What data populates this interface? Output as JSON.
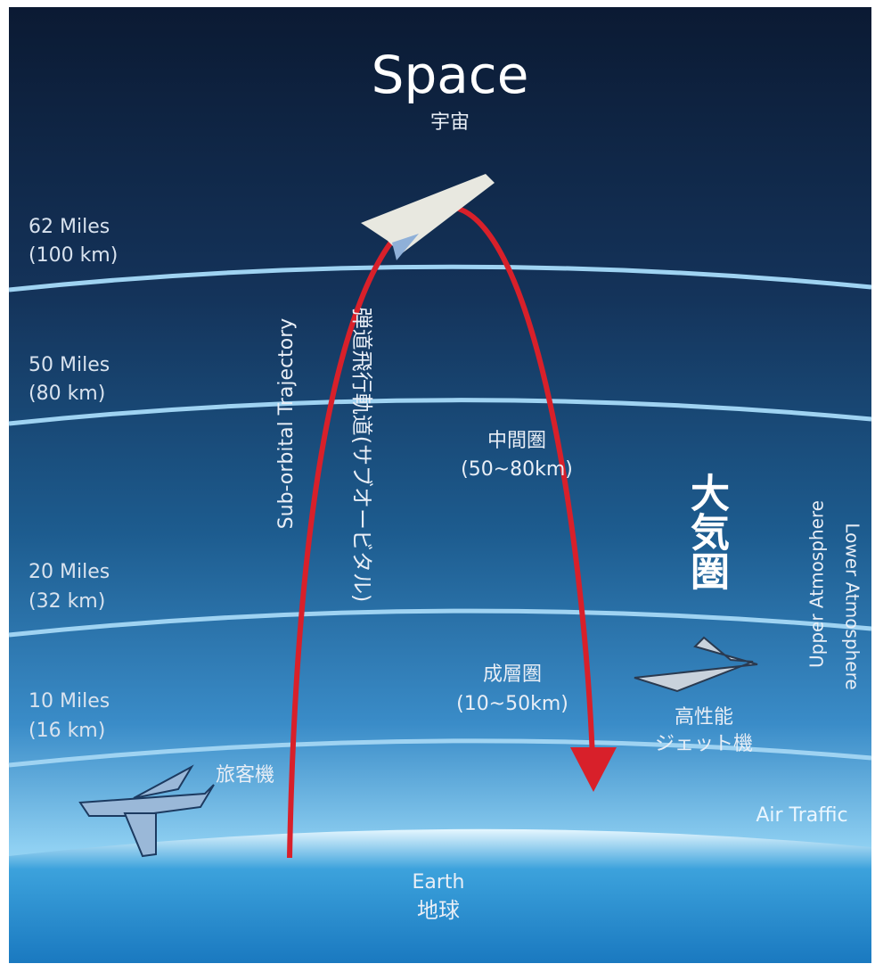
{
  "title": "Space",
  "title_ja": "宇宙",
  "altitudes": [
    {
      "miles": "62 Miles",
      "km": "(100 km)"
    },
    {
      "miles": "50 Miles",
      "km": "(80 km)"
    },
    {
      "miles": "20 Miles",
      "km": "(32 km)"
    },
    {
      "miles": "10 Miles",
      "km": "(16 km)"
    }
  ],
  "trajectory": {
    "en": "Sub-orbital Trajectory",
    "ja": "弾道飛行軌道(サブオービタル)"
  },
  "layers": [
    {
      "name": "中間圏",
      "range": "(50~80km)"
    },
    {
      "name": "成層圏",
      "range": "(10~50km)"
    }
  ],
  "atmosphere": {
    "ja": "大気圏",
    "upper": "Upper Atmosphere",
    "lower": "Lower Atmosphere"
  },
  "jet": {
    "line1": "高性能",
    "line2": "ジェット機"
  },
  "airliner": "旅客機",
  "air_traffic": "Air Traffic",
  "earth": {
    "en": "Earth",
    "ja": "地球"
  }
}
